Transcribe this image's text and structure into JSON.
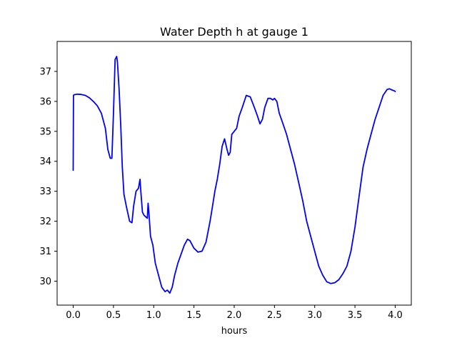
{
  "chart_data": {
    "type": "line",
    "title": "Water Depth h at gauge 1",
    "xlabel": "hours",
    "ylabel": "",
    "xlim": [
      -0.2,
      4.2
    ],
    "ylim": [
      29.2,
      38.0
    ],
    "xticks": [
      0.0,
      0.5,
      1.0,
      1.5,
      2.0,
      2.5,
      3.0,
      3.5,
      4.0
    ],
    "xtick_labels": [
      "0.0",
      "0.5",
      "1.0",
      "1.5",
      "2.0",
      "2.5",
      "3.0",
      "3.5",
      "4.0"
    ],
    "yticks": [
      30,
      31,
      32,
      33,
      34,
      35,
      36,
      37
    ],
    "ytick_labels": [
      "30",
      "31",
      "32",
      "33",
      "34",
      "35",
      "36",
      "37"
    ],
    "grid": false,
    "series": [
      {
        "color": "#0000ff",
        "x": [
          0.0,
          0.003,
          0.01,
          0.05,
          0.1,
          0.15,
          0.2,
          0.25,
          0.3,
          0.35,
          0.4,
          0.43,
          0.46,
          0.48,
          0.5,
          0.52,
          0.54,
          0.55,
          0.57,
          0.59,
          0.61,
          0.63,
          0.66,
          0.7,
          0.73,
          0.75,
          0.78,
          0.81,
          0.83,
          0.84,
          0.86,
          0.88,
          0.92,
          0.93,
          0.94,
          0.96,
          0.99,
          1.02,
          1.06,
          1.1,
          1.14,
          1.17,
          1.2,
          1.23,
          1.26,
          1.3,
          1.34,
          1.38,
          1.42,
          1.45,
          1.5,
          1.55,
          1.6,
          1.65,
          1.7,
          1.73,
          1.76,
          1.79,
          1.82,
          1.85,
          1.88,
          1.91,
          1.93,
          1.95,
          1.97,
          2.0,
          2.03,
          2.06,
          2.1,
          2.15,
          2.2,
          2.25,
          2.29,
          2.32,
          2.35,
          2.38,
          2.42,
          2.45,
          2.48,
          2.5,
          2.53,
          2.56,
          2.6,
          2.65,
          2.7,
          2.75,
          2.8,
          2.85,
          2.9,
          2.95,
          3.0,
          3.05,
          3.1,
          3.15,
          3.2,
          3.25,
          3.3,
          3.35,
          3.4,
          3.45,
          3.5,
          3.55,
          3.6,
          3.65,
          3.7,
          3.75,
          3.8,
          3.85,
          3.9,
          3.93,
          3.96,
          3.99,
          4.0
        ],
        "y": [
          33.7,
          36.2,
          36.22,
          36.24,
          36.23,
          36.2,
          36.12,
          36.0,
          35.85,
          35.6,
          35.1,
          34.4,
          34.1,
          34.1,
          35.6,
          37.4,
          37.5,
          37.3,
          36.4,
          35.2,
          33.8,
          32.9,
          32.5,
          32.0,
          31.95,
          32.5,
          33.0,
          33.1,
          33.4,
          33.0,
          32.3,
          32.2,
          32.1,
          32.6,
          32.3,
          31.5,
          31.2,
          30.6,
          30.2,
          29.8,
          29.65,
          29.7,
          29.6,
          29.8,
          30.2,
          30.6,
          30.9,
          31.2,
          31.4,
          31.35,
          31.1,
          30.97,
          31.0,
          31.3,
          32.0,
          32.5,
          33.0,
          33.4,
          33.9,
          34.5,
          34.75,
          34.4,
          34.2,
          34.3,
          34.9,
          35.0,
          35.1,
          35.5,
          35.8,
          36.2,
          36.15,
          35.8,
          35.5,
          35.25,
          35.4,
          35.8,
          36.1,
          36.1,
          36.05,
          36.1,
          36.0,
          35.6,
          35.3,
          34.9,
          34.4,
          33.9,
          33.3,
          32.7,
          32.0,
          31.5,
          31.0,
          30.5,
          30.2,
          29.98,
          29.92,
          29.95,
          30.05,
          30.25,
          30.5,
          31.0,
          31.8,
          32.8,
          33.8,
          34.4,
          34.9,
          35.4,
          35.8,
          36.2,
          36.4,
          36.42,
          36.38,
          36.35,
          36.33
        ]
      }
    ]
  }
}
